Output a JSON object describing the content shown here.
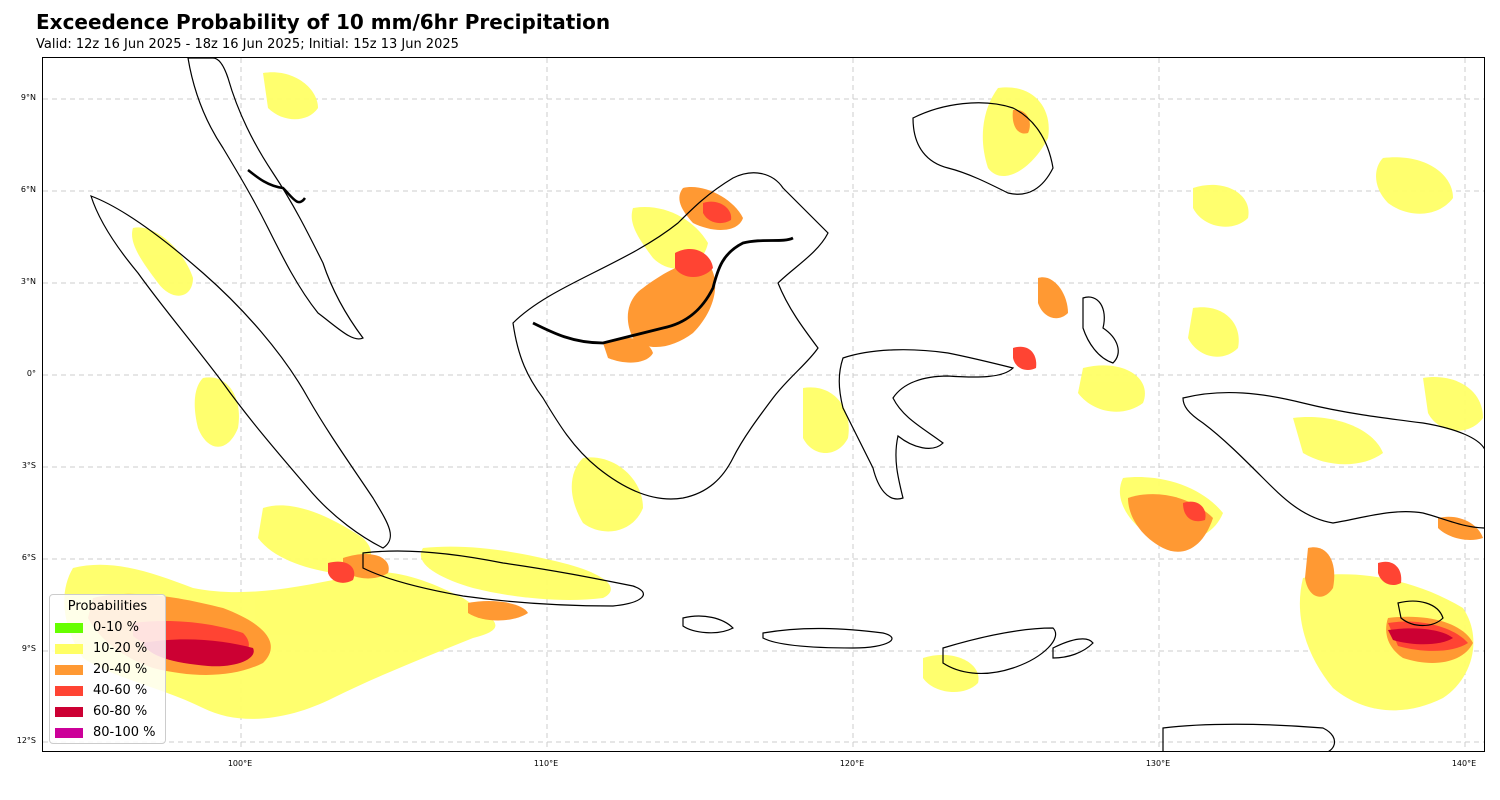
{
  "header": {
    "title": "Exceedence Probability of 10 mm/6hr Precipitation",
    "subtitle": "Valid: 12z 16 Jun 2025 - 18z 16 Jun 2025; Initial: 15z 13 Jun 2025"
  },
  "axes": {
    "lat_ticks": [
      "9°N",
      "6°N",
      "3°N",
      "0°",
      "3°S",
      "6°S",
      "9°S",
      "12°S"
    ],
    "lon_ticks": [
      "100°E",
      "110°E",
      "120°E",
      "130°E",
      "140°E"
    ],
    "lat_values": [
      9,
      6,
      3,
      0,
      -3,
      -6,
      -9,
      -12
    ],
    "lon_values": [
      100,
      110,
      120,
      130,
      140
    ],
    "lat_range": [
      -12.5,
      10.3
    ],
    "lon_range": [
      93.5,
      140.7
    ],
    "grid": true
  },
  "legend": {
    "title": "Probabilities",
    "placement": "bottom-left",
    "items": [
      {
        "label": "0-10 %",
        "color": "#66ff00"
      },
      {
        "label": "10-20 %",
        "color": "#ffff66"
      },
      {
        "label": "20-40 %",
        "color": "#ff9933"
      },
      {
        "label": "40-60 %",
        "color": "#ff4433"
      },
      {
        "label": "60-80 %",
        "color": "#cc0033"
      },
      {
        "label": "80-100 %",
        "color": "#cc0099"
      }
    ]
  },
  "colors": {
    "coastline": "#000000",
    "gridline": "#cccccc"
  }
}
